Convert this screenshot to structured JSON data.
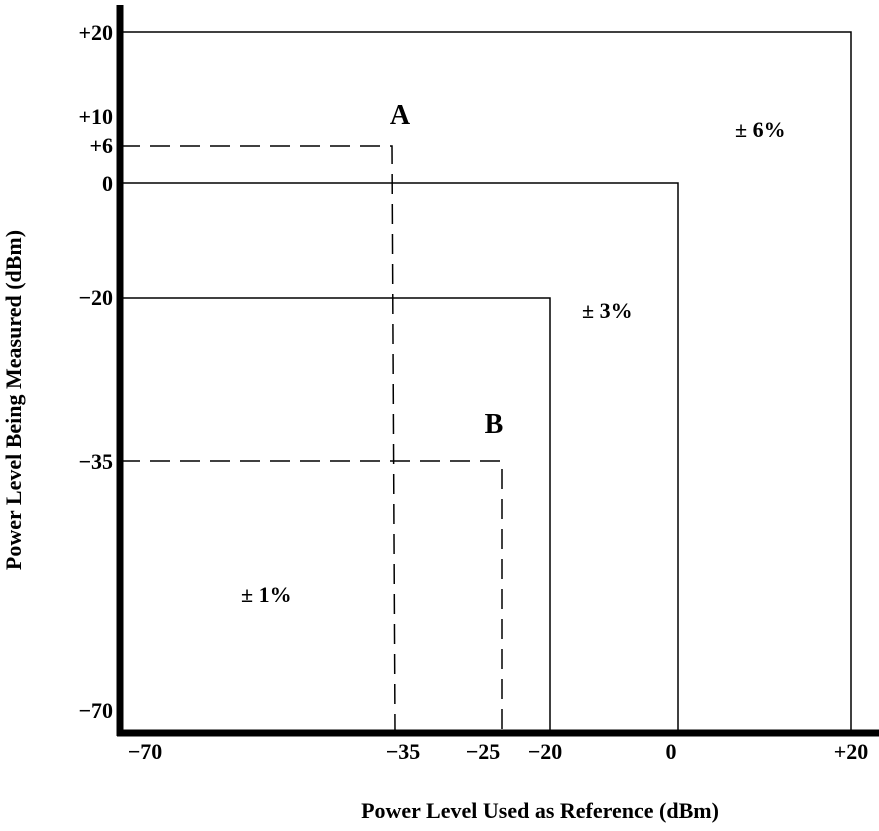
{
  "x_axis": {
    "title": "Power Level Used as Reference (dBm)",
    "ticks": [
      "−70",
      "−35",
      "−25",
      "−20",
      "0",
      "+20"
    ]
  },
  "y_axis": {
    "title": "Power Level Being Measured (dBm)",
    "ticks": [
      "+20",
      "+10",
      "+6",
      "0",
      "−20",
      "−35",
      "−70"
    ]
  },
  "regions": {
    "outer": "± 6%",
    "middle": "± 3%",
    "inner": "± 1%"
  },
  "points": {
    "a": "A",
    "b": "B"
  }
}
